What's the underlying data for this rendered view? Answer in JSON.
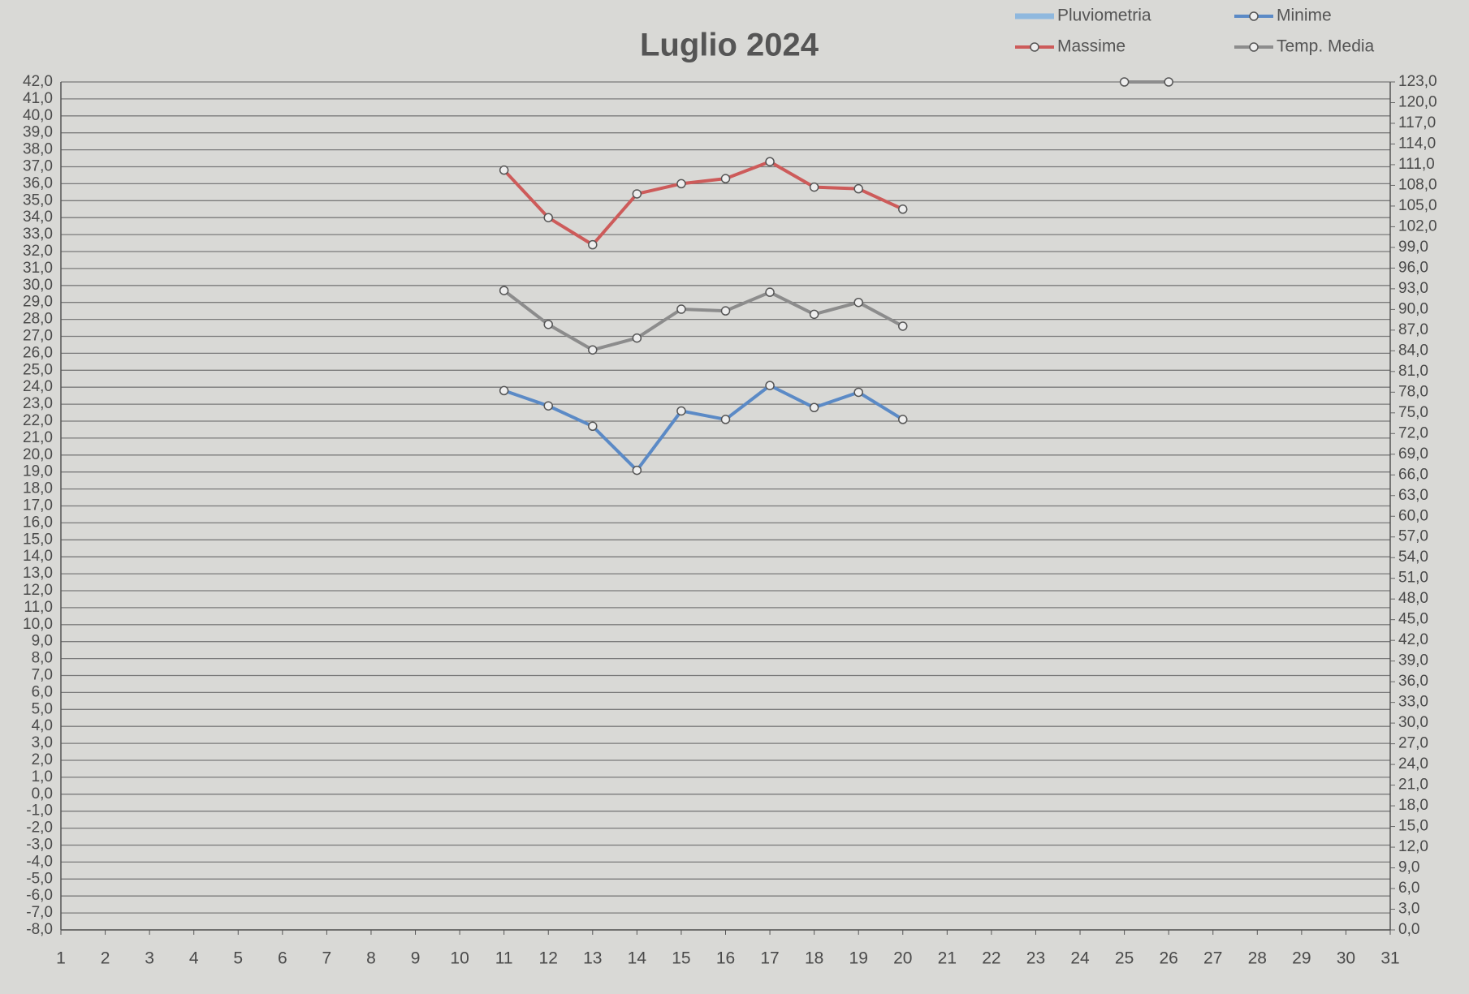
{
  "chart_data": {
    "type": "line",
    "title": "Luglio 2024",
    "categories": [
      "1",
      "2",
      "3",
      "4",
      "5",
      "6",
      "7",
      "8",
      "9",
      "10",
      "11",
      "12",
      "13",
      "14",
      "15",
      "16",
      "17",
      "18",
      "19",
      "20",
      "21",
      "22",
      "23",
      "24",
      "25",
      "26",
      "27",
      "28",
      "29",
      "30",
      "31"
    ],
    "series": [
      {
        "name": "Pluviometria",
        "color": "#8fb8de",
        "type": "bar",
        "axis": "y2",
        "values": [
          null,
          null,
          null,
          null,
          null,
          null,
          null,
          null,
          null,
          null,
          null,
          null,
          null,
          null,
          null,
          null,
          null,
          null,
          null,
          null,
          null,
          null,
          null,
          null,
          null,
          null,
          null,
          null,
          null,
          null,
          null
        ]
      },
      {
        "name": "Minime",
        "color": "#5b8ac6",
        "values": [
          null,
          null,
          null,
          null,
          null,
          null,
          null,
          null,
          null,
          null,
          23.8,
          22.9,
          21.7,
          19.1,
          22.6,
          22.1,
          24.1,
          22.8,
          23.7,
          22.1,
          null,
          null,
          null,
          null,
          null,
          null,
          null,
          null,
          null,
          null,
          null
        ]
      },
      {
        "name": "Massime",
        "color": "#cd5b5a",
        "values": [
          null,
          null,
          null,
          null,
          null,
          null,
          null,
          null,
          null,
          null,
          36.8,
          34.0,
          32.4,
          35.4,
          36.0,
          36.3,
          37.3,
          35.8,
          35.7,
          34.5,
          null,
          null,
          null,
          null,
          null,
          null,
          null,
          null,
          null,
          null,
          null
        ]
      },
      {
        "name": "Temp. Media",
        "color": "#8c8c8c",
        "values": [
          null,
          null,
          null,
          null,
          null,
          null,
          null,
          null,
          null,
          null,
          29.7,
          27.7,
          26.2,
          26.9,
          28.6,
          28.5,
          29.6,
          28.3,
          29.0,
          27.6,
          null,
          null,
          null,
          null,
          42,
          42,
          null,
          null,
          null,
          null,
          null
        ]
      }
    ],
    "ylim": [
      -8,
      42
    ],
    "yticks": [
      {
        "value": -8,
        "label": "-8,0"
      },
      {
        "value": -7,
        "label": "-7,0"
      },
      {
        "value": -6,
        "label": "-6,0"
      },
      {
        "value": -5,
        "label": "-5,0"
      },
      {
        "value": -4,
        "label": "-4,0"
      },
      {
        "value": -3,
        "label": "-3,0"
      },
      {
        "value": -2,
        "label": "-2,0"
      },
      {
        "value": -1,
        "label": "-1,0"
      },
      {
        "value": 0,
        "label": "0,0"
      },
      {
        "value": 1,
        "label": "1,0"
      },
      {
        "value": 2,
        "label": "2,0"
      },
      {
        "value": 3,
        "label": "3,0"
      },
      {
        "value": 4,
        "label": "4,0"
      },
      {
        "value": 5,
        "label": "5,0"
      },
      {
        "value": 6,
        "label": "6,0"
      },
      {
        "value": 7,
        "label": "7,0"
      },
      {
        "value": 8,
        "label": "8,0"
      },
      {
        "value": 9,
        "label": "9,0"
      },
      {
        "value": 10,
        "label": "10,0"
      },
      {
        "value": 11,
        "label": "11,0"
      },
      {
        "value": 12,
        "label": "12,0"
      },
      {
        "value": 13,
        "label": "13,0"
      },
      {
        "value": 14,
        "label": "14,0"
      },
      {
        "value": 15,
        "label": "15,0"
      },
      {
        "value": 16,
        "label": "16,0"
      },
      {
        "value": 17,
        "label": "17,0"
      },
      {
        "value": 18,
        "label": "18,0"
      },
      {
        "value": 19,
        "label": "19,0"
      },
      {
        "value": 20,
        "label": "20,0"
      },
      {
        "value": 21,
        "label": "21,0"
      },
      {
        "value": 22,
        "label": "22,0"
      },
      {
        "value": 23,
        "label": "23,0"
      },
      {
        "value": 24,
        "label": "24,0"
      },
      {
        "value": 25,
        "label": "25,0"
      },
      {
        "value": 26,
        "label": "26,0"
      },
      {
        "value": 27,
        "label": "27,0"
      },
      {
        "value": 28,
        "label": "28,0"
      },
      {
        "value": 29,
        "label": "29,0"
      },
      {
        "value": 30,
        "label": "30,0"
      },
      {
        "value": 31,
        "label": "31,0"
      },
      {
        "value": 32,
        "label": "32,0"
      },
      {
        "value": 33,
        "label": "33,0"
      },
      {
        "value": 34,
        "label": "34,0"
      },
      {
        "value": 35,
        "label": "35,0"
      },
      {
        "value": 36,
        "label": "36,0"
      },
      {
        "value": 37,
        "label": "37,0"
      },
      {
        "value": 38,
        "label": "38,0"
      },
      {
        "value": 39,
        "label": "39,0"
      },
      {
        "value": 40,
        "label": "40,0"
      },
      {
        "value": 41,
        "label": "41,0"
      },
      {
        "value": 42,
        "label": "42,0"
      }
    ],
    "y2lim": [
      0,
      123
    ],
    "y2ticks": [
      {
        "value": 0,
        "label": "0,0"
      },
      {
        "value": 3,
        "label": "3,0"
      },
      {
        "value": 6,
        "label": "6,0"
      },
      {
        "value": 9,
        "label": "9,0"
      },
      {
        "value": 12,
        "label": "12,0"
      },
      {
        "value": 15,
        "label": "15,0"
      },
      {
        "value": 18,
        "label": "18,0"
      },
      {
        "value": 21,
        "label": "21,0"
      },
      {
        "value": 24,
        "label": "24,0"
      },
      {
        "value": 27,
        "label": "27,0"
      },
      {
        "value": 30,
        "label": "30,0"
      },
      {
        "value": 33,
        "label": "33,0"
      },
      {
        "value": 36,
        "label": "36,0"
      },
      {
        "value": 39,
        "label": "39,0"
      },
      {
        "value": 42,
        "label": "42,0"
      },
      {
        "value": 45,
        "label": "45,0"
      },
      {
        "value": 48,
        "label": "48,0"
      },
      {
        "value": 51,
        "label": "51,0"
      },
      {
        "value": 54,
        "label": "54,0"
      },
      {
        "value": 57,
        "label": "57,0"
      },
      {
        "value": 60,
        "label": "60,0"
      },
      {
        "value": 63,
        "label": "63,0"
      },
      {
        "value": 66,
        "label": "66,0"
      },
      {
        "value": 69,
        "label": "69,0"
      },
      {
        "value": 72,
        "label": "72,0"
      },
      {
        "value": 75,
        "label": "75,0"
      },
      {
        "value": 78,
        "label": "78,0"
      },
      {
        "value": 81,
        "label": "81,0"
      },
      {
        "value": 84,
        "label": "84,0"
      },
      {
        "value": 87,
        "label": "87,0"
      },
      {
        "value": 90,
        "label": "90,0"
      },
      {
        "value": 93,
        "label": "93,0"
      },
      {
        "value": 96,
        "label": "96,0"
      },
      {
        "value": 99,
        "label": "99,0"
      },
      {
        "value": 102,
        "label": "102,0"
      },
      {
        "value": 105,
        "label": "105,0"
      },
      {
        "value": 108,
        "label": "108,0"
      },
      {
        "value": 111,
        "label": "111,0"
      },
      {
        "value": 114,
        "label": "114,0"
      },
      {
        "value": 117,
        "label": "117,0"
      },
      {
        "value": 120,
        "label": "120,0"
      },
      {
        "value": 123,
        "label": "123,0"
      }
    ],
    "grid": true
  }
}
